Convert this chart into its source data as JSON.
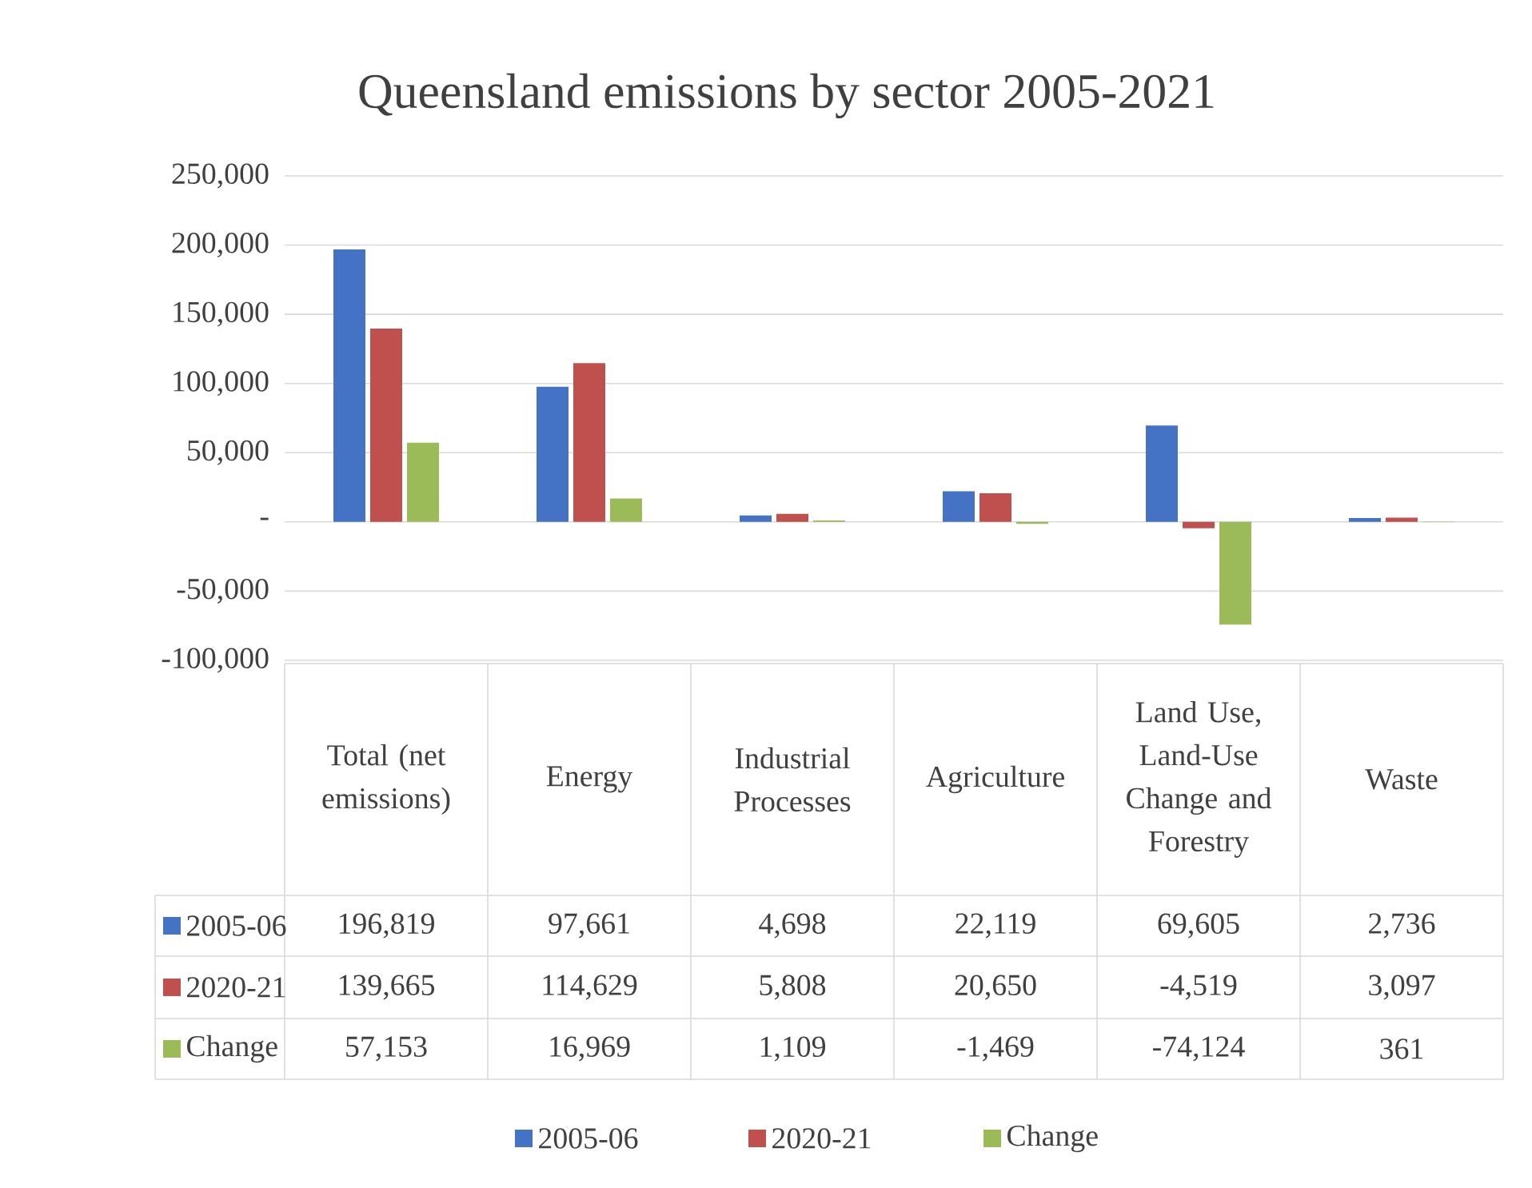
{
  "chart_data": {
    "type": "bar",
    "title": "Queensland emissions by sector 2005-2021",
    "categories": [
      "Total (net emissions)",
      "Energy",
      "Industrial Processes",
      "Agriculture",
      "Land Use, Land-Use Change and Forestry",
      "Waste"
    ],
    "series": [
      {
        "name": "2005-06",
        "color": "#4472c4",
        "values": [
          196819,
          97661,
          4698,
          22119,
          69605,
          2736
        ],
        "value_labels": [
          "196,819",
          "97,661",
          "4,698",
          "22,119",
          "69,605",
          "2,736"
        ]
      },
      {
        "name": "2020-21",
        "color": "#c0504d",
        "values": [
          139665,
          114629,
          5808,
          20650,
          -4519,
          3097
        ],
        "value_labels": [
          "139,665",
          "114,629",
          "5,808",
          "20,650",
          "-4,519",
          "3,097"
        ]
      },
      {
        "name": "Change",
        "color": "#9bbb59",
        "values": [
          57153,
          16969,
          1109,
          -1469,
          -74124,
          361
        ],
        "value_labels": [
          "57,153",
          "16,969",
          "1,109",
          "-1,469",
          "-74,124",
          "361"
        ]
      }
    ],
    "ylim": [
      -100000,
      250000
    ],
    "yticks": [
      {
        "value": -100000,
        "label": "-100,000"
      },
      {
        "value": -50000,
        "label": "-50,000"
      },
      {
        "value": 0,
        "label": "-"
      },
      {
        "value": 50000,
        "label": "50,000"
      },
      {
        "value": 100000,
        "label": "100,000"
      },
      {
        "value": 150000,
        "label": "150,000"
      },
      {
        "value": 200000,
        "label": "200,000"
      },
      {
        "value": 250000,
        "label": "250,000"
      }
    ],
    "grid": "y",
    "legend": "bottom"
  }
}
